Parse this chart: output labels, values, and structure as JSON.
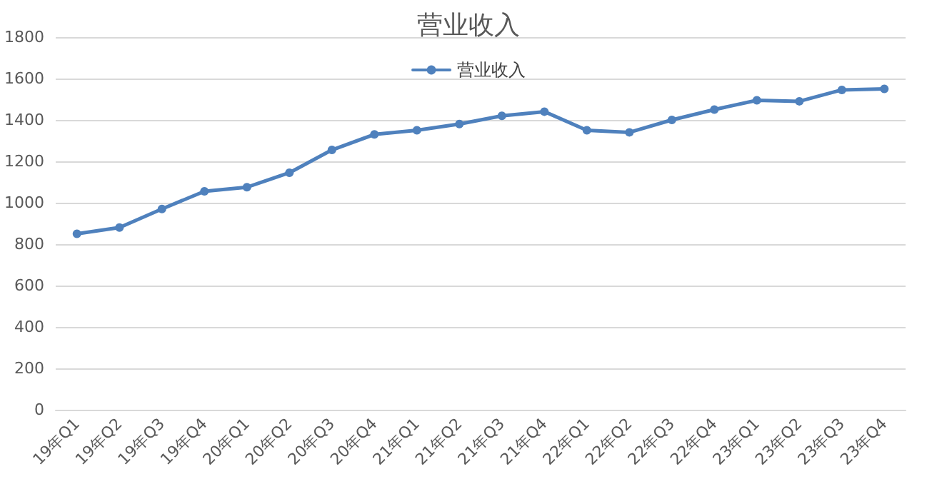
{
  "chart_data": {
    "type": "line",
    "title": "营业收入",
    "categories": [
      "19年Q1",
      "19年Q2",
      "19年Q3",
      "19年Q4",
      "20年Q1",
      "20年Q2",
      "20年Q3",
      "20年Q4",
      "21年Q1",
      "21年Q2",
      "21年Q3",
      "21年Q4",
      "22年Q1",
      "22年Q2",
      "22年Q3",
      "22年Q4",
      "23年Q1",
      "23年Q2",
      "23年Q3",
      "23年Q4"
    ],
    "series": [
      {
        "name": "营业收入",
        "color": "#4f81bd",
        "values": [
          850,
          880,
          970,
          1055,
          1075,
          1145,
          1255,
          1330,
          1350,
          1380,
          1420,
          1440,
          1350,
          1340,
          1400,
          1450,
          1495,
          1490,
          1545,
          1550
        ]
      }
    ],
    "ylim": [
      0,
      1800
    ],
    "yticks": [
      0,
      200,
      400,
      600,
      800,
      1000,
      1200,
      1400,
      1600,
      1800
    ],
    "grid": "y",
    "legend": "top",
    "marker": "circle",
    "line_style": "solid"
  }
}
